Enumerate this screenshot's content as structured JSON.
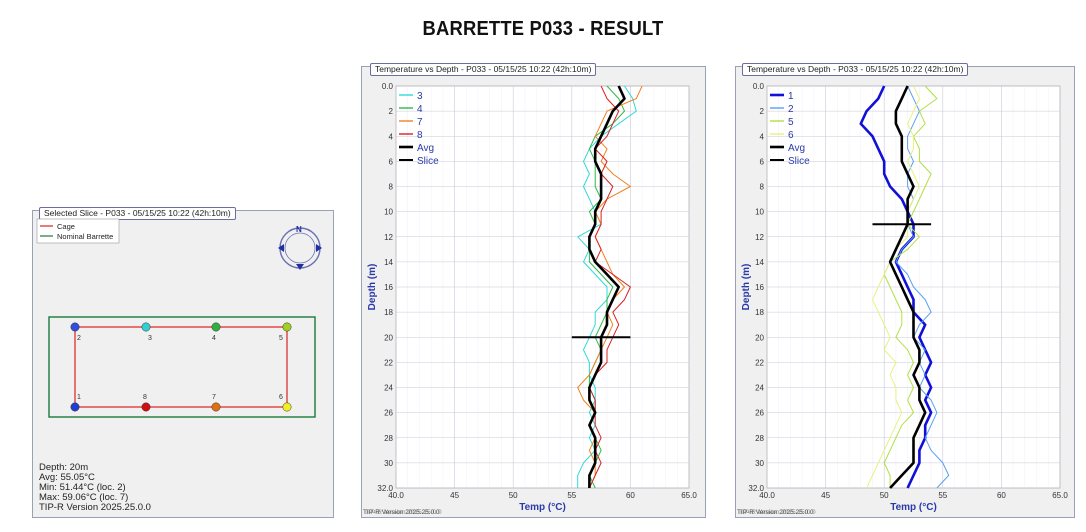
{
  "page": {
    "title": "BARRETTE P033 - RESULT"
  },
  "slice_panel": {
    "title": "Selected Slice - P033 - 05/15/25 10:22 (42h:10m)",
    "legend": [
      {
        "label": "Cage",
        "color": "#e02020"
      },
      {
        "label": "Nominal Barrette",
        "color": "#1a7a3a"
      }
    ],
    "compass_letter": "N",
    "sensors": [
      {
        "label": "1",
        "color": "#1f3fd0"
      },
      {
        "label": "2",
        "color": "#3050e0"
      },
      {
        "label": "3",
        "color": "#30d0d0"
      },
      {
        "label": "4",
        "color": "#30b040"
      },
      {
        "label": "5",
        "color": "#a0d020"
      },
      {
        "label": "6",
        "color": "#f0f020"
      },
      {
        "label": "7",
        "color": "#e07010"
      },
      {
        "label": "8",
        "color": "#d01010"
      }
    ],
    "info": {
      "depth": "Depth: 20m",
      "avg": "Avg: 55.05°C",
      "min": "Min: 51.44°C (loc. 2)",
      "max": "Max: 59.06°C (loc. 7)",
      "version": "TIP-R Version 2025.25.0.0"
    }
  },
  "chart_data": [
    {
      "type": "line",
      "title": "Temperature vs Depth - P033 - 05/15/25 10:22 (42h:10m)",
      "xlabel": "Temp (°C)",
      "ylabel": "Depth (m)",
      "xlim": [
        40,
        65
      ],
      "ylim": [
        0,
        32
      ],
      "y_inverted": true,
      "x_ticks": [
        "40.0",
        "45",
        "50",
        "55",
        "60",
        "65.0"
      ],
      "y_ticks": [
        "0.0",
        "2",
        "4",
        "6",
        "8",
        "10",
        "12",
        "14",
        "16",
        "18",
        "20",
        "22",
        "24",
        "26",
        "28",
        "30",
        "32.0"
      ],
      "grid": true,
      "legend_position": "top-left",
      "version_text": "TIP-R Version 2025.25.0.0",
      "slice": {
        "depth": 20,
        "x_from": 55,
        "x_to": 60
      },
      "series": [
        {
          "name": "3",
          "color": "#30d8d8",
          "width": 1,
          "depth": [
            0,
            1,
            2,
            3,
            4,
            5,
            6,
            7,
            8,
            9,
            10,
            11,
            12,
            13,
            14,
            15,
            16,
            17,
            18,
            19,
            20,
            21,
            22,
            23,
            24,
            25,
            26,
            27,
            28,
            29,
            30,
            31,
            32
          ],
          "temp": [
            59.5,
            60.2,
            60.5,
            59.0,
            57.5,
            56.5,
            56.0,
            56.5,
            56.0,
            56.5,
            57.0,
            57.5,
            55.5,
            56.5,
            56.0,
            57.0,
            58.0,
            58.0,
            57.0,
            57.0,
            56.5,
            56.0,
            56.5,
            56.5,
            57.0,
            57.0,
            56.5,
            57.0,
            56.5,
            57.0,
            56.0,
            55.5,
            55.5
          ]
        },
        {
          "name": "4",
          "color": "#30b848",
          "width": 1,
          "depth": [
            0,
            1,
            2,
            3,
            4,
            5,
            6,
            7,
            8,
            9,
            10,
            11,
            12,
            13,
            14,
            15,
            16,
            17,
            18,
            19,
            20,
            21,
            22,
            23,
            24,
            25,
            26,
            27,
            28,
            29,
            30,
            31,
            32
          ],
          "temp": [
            58.0,
            59.0,
            59.5,
            58.5,
            57.0,
            56.5,
            57.0,
            57.0,
            57.0,
            57.5,
            56.5,
            57.0,
            56.5,
            56.5,
            56.5,
            57.5,
            58.5,
            58.0,
            58.0,
            57.5,
            57.0,
            57.5,
            57.0,
            56.5,
            56.5,
            57.0,
            57.0,
            56.5,
            57.0,
            57.5,
            57.0,
            56.5,
            57.0
          ]
        },
        {
          "name": "7",
          "color": "#f08020",
          "width": 1,
          "depth": [
            0,
            1,
            2,
            3,
            4,
            5,
            6,
            7,
            8,
            9,
            10,
            11,
            12,
            13,
            14,
            15,
            16,
            17,
            18,
            19,
            20,
            21,
            22,
            23,
            24,
            25,
            26,
            27,
            28,
            29,
            30,
            31,
            32
          ],
          "temp": [
            61.0,
            60.5,
            58.0,
            57.5,
            57.0,
            58.0,
            57.5,
            58.5,
            60.0,
            58.0,
            57.0,
            57.5,
            57.0,
            57.5,
            58.0,
            58.5,
            59.5,
            58.5,
            58.0,
            58.5,
            58.0,
            57.5,
            57.0,
            56.5,
            55.5,
            56.0,
            57.0,
            56.5,
            57.0,
            56.5,
            57.0,
            57.0,
            56.5
          ]
        },
        {
          "name": "8",
          "color": "#d82020",
          "width": 1,
          "depth": [
            0,
            1,
            2,
            3,
            4,
            5,
            6,
            7,
            8,
            9,
            10,
            11,
            12,
            13,
            14,
            15,
            16,
            17,
            18,
            19,
            20,
            21,
            22,
            23,
            24,
            25,
            26,
            27,
            28,
            29,
            30,
            31,
            32
          ],
          "temp": [
            57.5,
            58.0,
            59.0,
            58.5,
            58.0,
            57.0,
            58.0,
            57.5,
            58.5,
            58.0,
            57.5,
            57.5,
            57.0,
            57.5,
            57.0,
            58.5,
            60.0,
            59.5,
            58.5,
            59.0,
            58.5,
            58.0,
            58.0,
            57.0,
            56.5,
            57.0,
            57.0,
            57.0,
            57.5,
            57.0,
            57.5,
            57.0,
            56.5
          ]
        },
        {
          "name": "Avg",
          "color": "#000000",
          "width": 2.6,
          "depth": [
            0,
            1,
            2,
            3,
            4,
            5,
            6,
            7,
            8,
            9,
            10,
            11,
            12,
            13,
            14,
            15,
            16,
            17,
            18,
            19,
            20,
            21,
            22,
            23,
            24,
            25,
            26,
            27,
            28,
            29,
            30,
            31,
            32
          ],
          "temp": [
            59.0,
            59.5,
            58.5,
            58.0,
            57.5,
            57.0,
            57.0,
            57.5,
            57.5,
            57.5,
            57.0,
            57.0,
            56.5,
            56.5,
            57.0,
            58.0,
            59.0,
            58.5,
            58.0,
            58.0,
            57.5,
            57.5,
            57.5,
            57.0,
            56.5,
            56.5,
            57.0,
            56.5,
            57.0,
            57.0,
            57.0,
            56.5,
            56.5
          ]
        },
        {
          "name": "Slice",
          "color": "#000000",
          "width": 2,
          "legend_only": true
        }
      ]
    },
    {
      "type": "line",
      "title": "Temperature vs Depth - P033 - 05/15/25 10:22 (42h:10m)",
      "xlabel": "Temp (°C)",
      "ylabel": "Depth (m)",
      "xlim": [
        40,
        65
      ],
      "ylim": [
        0,
        32
      ],
      "y_inverted": true,
      "x_ticks": [
        "40.0",
        "45",
        "50",
        "55",
        "60",
        "65.0"
      ],
      "y_ticks": [
        "0.0",
        "2",
        "4",
        "6",
        "8",
        "10",
        "12",
        "14",
        "16",
        "18",
        "20",
        "22",
        "24",
        "26",
        "28",
        "30",
        "32.0"
      ],
      "grid": true,
      "legend_position": "top-left",
      "version_text": "TIP-R Version 2025.25.0.0",
      "slice": {
        "depth": 11,
        "x_from": 49,
        "x_to": 54
      },
      "series": [
        {
          "name": "1",
          "color": "#1010d8",
          "width": 2.6,
          "depth": [
            0,
            1,
            2,
            3,
            4,
            5,
            6,
            7,
            8,
            9,
            10,
            11,
            12,
            13,
            14,
            15,
            16,
            17,
            18,
            19,
            20,
            21,
            22,
            23,
            24,
            25,
            26,
            27,
            28,
            29,
            30,
            31,
            32
          ],
          "temp": [
            50.0,
            49.5,
            48.5,
            48.0,
            49.0,
            49.5,
            50.0,
            50.0,
            50.5,
            51.5,
            52.0,
            52.5,
            52.5,
            51.5,
            51.0,
            51.5,
            52.0,
            52.5,
            52.5,
            53.5,
            53.0,
            53.5,
            54.0,
            53.5,
            54.0,
            53.5,
            54.0,
            53.5,
            53.5,
            53.0,
            53.0,
            52.5,
            52.0
          ]
        },
        {
          "name": "2",
          "color": "#5aa0f0",
          "width": 1,
          "depth": [
            0,
            1,
            2,
            3,
            4,
            5,
            6,
            7,
            8,
            9,
            10,
            11,
            12,
            13,
            14,
            15,
            16,
            17,
            18,
            19,
            20,
            21,
            22,
            23,
            24,
            25,
            26,
            27,
            28,
            29,
            30,
            31,
            32
          ],
          "temp": [
            52.0,
            52.5,
            53.0,
            52.5,
            52.0,
            52.0,
            52.5,
            52.0,
            52.0,
            52.5,
            52.0,
            52.0,
            52.5,
            51.5,
            51.0,
            52.0,
            52.5,
            53.5,
            54.0,
            53.0,
            52.5,
            53.5,
            53.0,
            53.5,
            53.0,
            54.0,
            54.5,
            54.0,
            53.5,
            54.0,
            55.0,
            55.5,
            54.5
          ]
        },
        {
          "name": "5",
          "color": "#b0e040",
          "width": 1,
          "depth": [
            0,
            1,
            2,
            3,
            4,
            5,
            6,
            7,
            8,
            9,
            10,
            11,
            12,
            13,
            14,
            15,
            16,
            17,
            18,
            19,
            20,
            21,
            22,
            23,
            24,
            25,
            26,
            27,
            28,
            29,
            30,
            31,
            32
          ],
          "temp": [
            53.5,
            54.5,
            53.0,
            53.5,
            52.5,
            53.0,
            53.0,
            54.0,
            53.5,
            53.0,
            52.5,
            52.0,
            53.0,
            52.0,
            50.5,
            50.0,
            50.5,
            51.0,
            51.5,
            51.5,
            51.0,
            52.0,
            52.5,
            52.0,
            52.5,
            52.0,
            52.5,
            51.5,
            51.0,
            50.5,
            50.0,
            50.5,
            50.5
          ]
        },
        {
          "name": "6",
          "color": "#e8f080",
          "width": 1,
          "depth": [
            0,
            1,
            2,
            3,
            4,
            5,
            6,
            7,
            8,
            9,
            10,
            11,
            12,
            13,
            14,
            15,
            16,
            17,
            18,
            19,
            20,
            21,
            22,
            23,
            24,
            25,
            26,
            27,
            28,
            29,
            30,
            31,
            32
          ],
          "temp": [
            52.5,
            53.0,
            52.5,
            52.0,
            52.5,
            52.5,
            52.0,
            52.5,
            53.0,
            52.5,
            52.0,
            52.0,
            52.0,
            51.0,
            50.5,
            50.0,
            49.5,
            49.0,
            49.5,
            50.0,
            50.5,
            50.0,
            51.0,
            50.5,
            51.0,
            51.0,
            51.5,
            51.0,
            50.5,
            50.0,
            49.5,
            49.0,
            48.5
          ]
        },
        {
          "name": "Avg",
          "color": "#000000",
          "width": 2.6,
          "depth": [
            0,
            1,
            2,
            3,
            4,
            5,
            6,
            7,
            8,
            9,
            10,
            11,
            12,
            13,
            14,
            15,
            16,
            17,
            18,
            19,
            20,
            21,
            22,
            23,
            24,
            25,
            26,
            27,
            28,
            29,
            30,
            31,
            32
          ],
          "temp": [
            52.0,
            51.5,
            51.0,
            51.0,
            51.5,
            51.5,
            51.5,
            52.0,
            52.5,
            52.0,
            52.0,
            52.0,
            51.5,
            51.0,
            50.5,
            51.0,
            51.5,
            52.0,
            52.5,
            52.5,
            52.5,
            53.0,
            53.0,
            52.5,
            53.0,
            53.0,
            53.5,
            53.0,
            52.5,
            52.5,
            52.5,
            51.5,
            50.5
          ]
        },
        {
          "name": "Slice",
          "color": "#000000",
          "width": 2,
          "legend_only": true
        }
      ]
    }
  ]
}
